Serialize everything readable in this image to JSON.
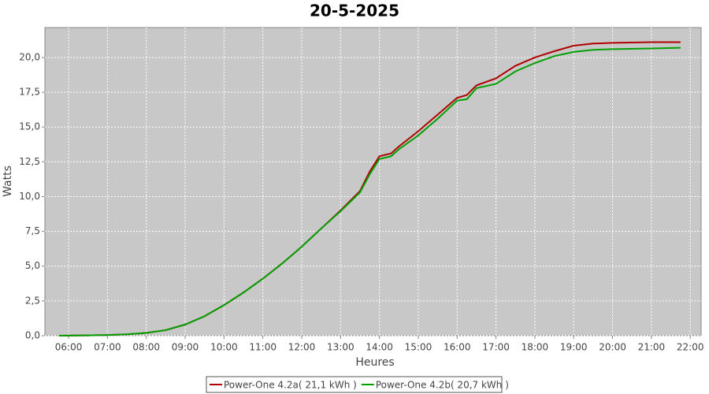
{
  "chart_data": {
    "type": "line",
    "title": "20-5-2025",
    "x_label": "Heures",
    "y_label": "Watts",
    "xlim": [
      5.39,
      22.28
    ],
    "ylim": [
      0,
      22.15
    ],
    "xticks": [
      {
        "value": 6,
        "label": "06:00"
      },
      {
        "value": 7,
        "label": "07:00"
      },
      {
        "value": 8,
        "label": "08:00"
      },
      {
        "value": 9,
        "label": "09:00"
      },
      {
        "value": 10,
        "label": "10:00"
      },
      {
        "value": 11,
        "label": "11:00"
      },
      {
        "value": 12,
        "label": "12:00"
      },
      {
        "value": 13,
        "label": "13:00"
      },
      {
        "value": 14,
        "label": "14:00"
      },
      {
        "value": 15,
        "label": "15:00"
      },
      {
        "value": 16,
        "label": "16:00"
      },
      {
        "value": 17,
        "label": "17:00"
      },
      {
        "value": 18,
        "label": "18:00"
      },
      {
        "value": 19,
        "label": "19:00"
      },
      {
        "value": 20,
        "label": "20:00"
      },
      {
        "value": 21,
        "label": "21:00"
      },
      {
        "value": 22,
        "label": "22:00"
      }
    ],
    "yticks": [
      {
        "value": 0,
        "label": "0,0"
      },
      {
        "value": 2.5,
        "label": "2,5"
      },
      {
        "value": 5,
        "label": "5,0"
      },
      {
        "value": 7.5,
        "label": "7,5"
      },
      {
        "value": 10,
        "label": "10,0"
      },
      {
        "value": 12.5,
        "label": "12,5"
      },
      {
        "value": 15,
        "label": "15,0"
      },
      {
        "value": 17.5,
        "label": "17,5"
      },
      {
        "value": 20,
        "label": "20,0"
      }
    ],
    "grid": true,
    "legend": "bottom",
    "x": [
      5.75,
      6.5,
      7,
      7.5,
      8,
      8.5,
      9,
      9.5,
      10,
      10.5,
      11,
      11.5,
      12,
      12.5,
      13,
      13.5,
      13.75,
      14,
      14.3,
      14.5,
      15,
      15.5,
      16,
      16.25,
      16.5,
      17,
      17.5,
      18,
      18.5,
      19,
      19.5,
      20,
      21,
      21.75
    ],
    "series": [
      {
        "name": "Power-One 4.2a( 21,1 kWh )",
        "color": "#b00000",
        "values": [
          0,
          0.02,
          0.05,
          0.1,
          0.2,
          0.4,
          0.8,
          1.4,
          2.2,
          3.1,
          4.1,
          5.2,
          6.4,
          7.7,
          9.0,
          10.4,
          11.8,
          12.9,
          13.1,
          13.6,
          14.7,
          15.9,
          17.1,
          17.3,
          18.0,
          18.5,
          19.4,
          20.0,
          20.45,
          20.85,
          21.0,
          21.05,
          21.1,
          21.1
        ]
      },
      {
        "name": "Power-One 4.2b( 20,7 kWh )",
        "color": "#00a000",
        "values": [
          0,
          0.02,
          0.05,
          0.1,
          0.2,
          0.4,
          0.8,
          1.4,
          2.2,
          3.1,
          4.1,
          5.2,
          6.4,
          7.7,
          8.95,
          10.3,
          11.6,
          12.7,
          12.9,
          13.4,
          14.4,
          15.6,
          16.9,
          17.0,
          17.8,
          18.1,
          19.0,
          19.6,
          20.1,
          20.4,
          20.55,
          20.6,
          20.65,
          20.7
        ]
      }
    ]
  }
}
